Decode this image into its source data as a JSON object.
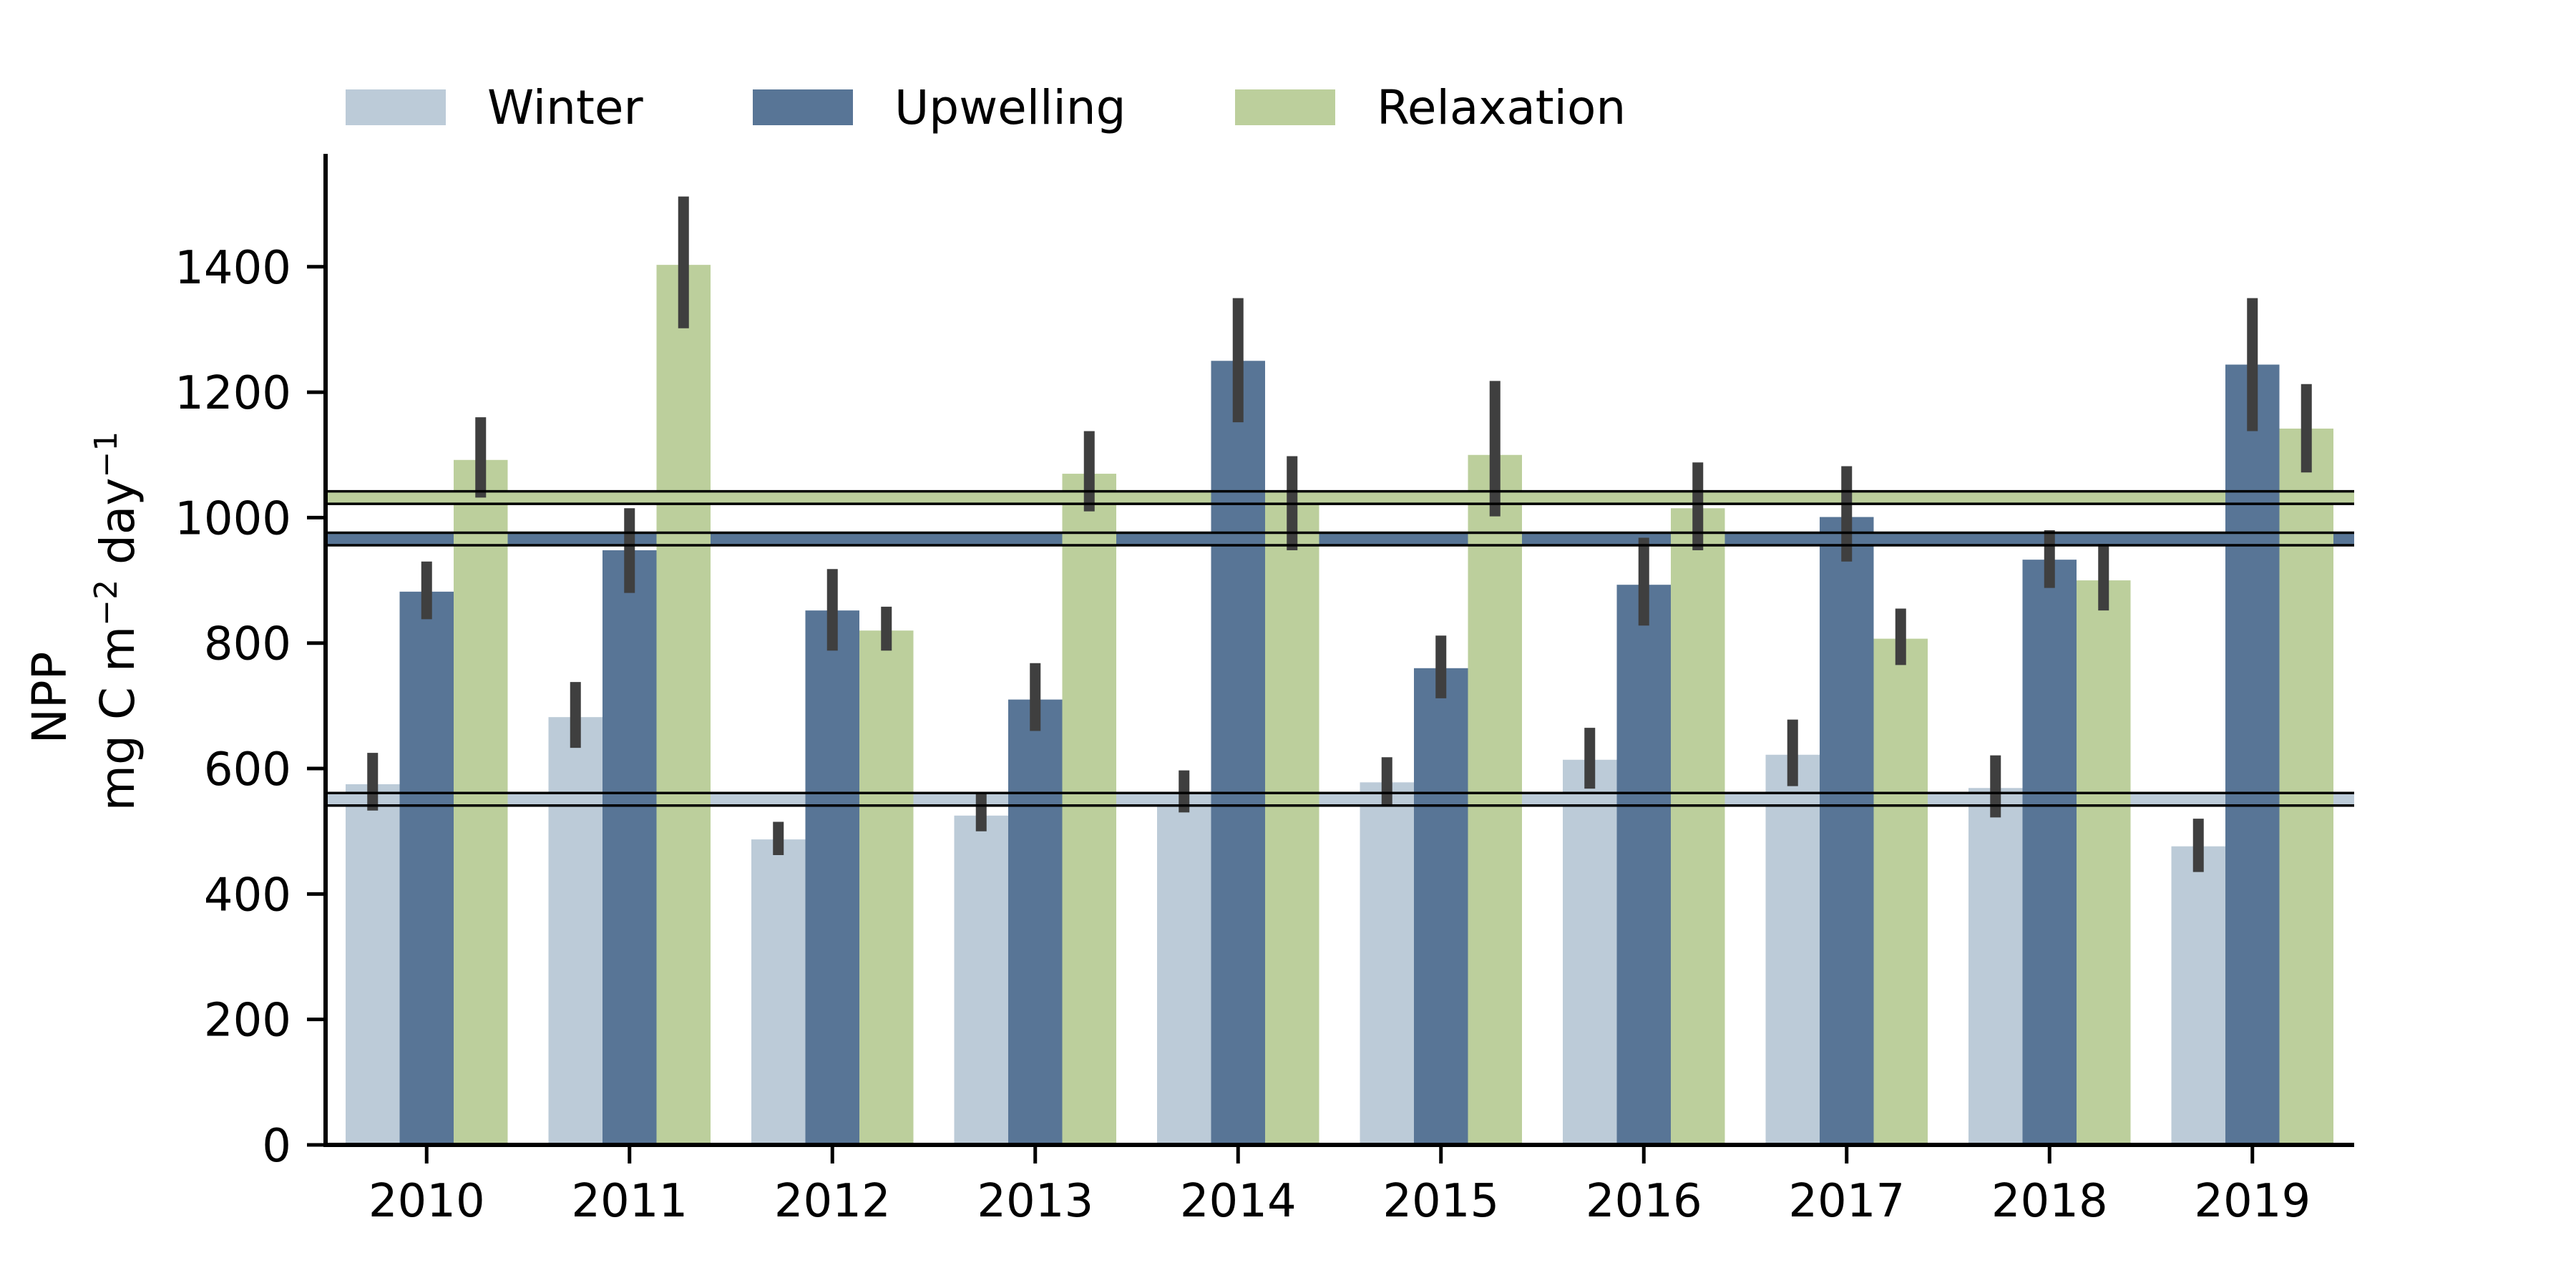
{
  "chart_data": {
    "type": "bar",
    "title": "",
    "xlabel": "",
    "ylabel_line1": "NPP",
    "ylabel_line2_pre": "mg C m",
    "ylabel_line2_exp1": "−2",
    "ylabel_line2_mid": " day",
    "ylabel_line2_exp2": "−1",
    "ylim": [
      0,
      1580
    ],
    "yticks": [
      0,
      200,
      400,
      600,
      800,
      1000,
      1200,
      1400
    ],
    "grid": false,
    "legend_position": "top-left",
    "categories": [
      "2010",
      "2011",
      "2012",
      "2013",
      "2014",
      "2015",
      "2016",
      "2017",
      "2018",
      "2019"
    ],
    "series": [
      {
        "name": "Winter",
        "color": "#bccbd8",
        "values": [
          575,
          682,
          487,
          525,
          562,
          578,
          614,
          622,
          569,
          476
        ],
        "ci_low": [
          533,
          633,
          462,
          500,
          530,
          543,
          568,
          572,
          522,
          435
        ],
        "ci_high": [
          625,
          738,
          515,
          560,
          597,
          618,
          665,
          678,
          621,
          520
        ],
        "mean": 551,
        "mean_band": [
          541,
          561
        ]
      },
      {
        "name": "Upwelling",
        "color": "#587596",
        "values": [
          882,
          948,
          852,
          710,
          1250,
          760,
          893,
          1001,
          933,
          1244
        ],
        "ci_low": [
          838,
          880,
          788,
          660,
          1152,
          712,
          828,
          930,
          888,
          1138
        ],
        "ci_high": [
          930,
          1015,
          918,
          768,
          1350,
          812,
          968,
          1082,
          980,
          1350
        ],
        "mean": 966,
        "mean_band": [
          956,
          976
        ]
      },
      {
        "name": "Relaxation",
        "color": "#bccf9c",
        "values": [
          1092,
          1403,
          820,
          1070,
          1022,
          1100,
          1015,
          807,
          900,
          1142
        ],
        "ci_low": [
          1032,
          1302,
          788,
          1010,
          948,
          1002,
          948,
          765,
          852,
          1072
        ],
        "ci_high": [
          1160,
          1512,
          858,
          1138,
          1098,
          1218,
          1088,
          855,
          958,
          1213
        ],
        "mean": 1032,
        "mean_band": [
          1022,
          1042
        ]
      }
    ]
  }
}
